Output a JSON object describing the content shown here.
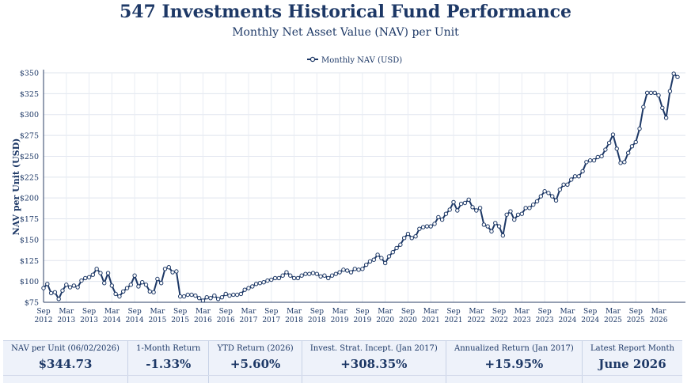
{
  "header": {
    "title": "547 Investments Historical Fund Performance",
    "subtitle": "Monthly Net Asset Value (NAV) per Unit"
  },
  "chart_data": {
    "type": "line",
    "ylabel": "NAV per Unit (USD)",
    "xlabel": "",
    "ylim": [
      75,
      350
    ],
    "yticks": [
      75,
      100,
      125,
      150,
      175,
      200,
      225,
      250,
      275,
      300,
      325,
      350
    ],
    "ytick_labels": [
      "$75",
      "$100",
      "$125",
      "$150",
      "$175",
      "$200",
      "$225",
      "$250",
      "$275",
      "$300",
      "$325",
      "$350"
    ],
    "grid": true,
    "legend_position": "top-center",
    "line_color": "#1d3866",
    "xticks": [
      {
        "m": "Sep",
        "y": "2012"
      },
      {
        "m": "Mar",
        "y": "2013"
      },
      {
        "m": "Sep",
        "y": "2013"
      },
      {
        "m": "Mar",
        "y": "2014"
      },
      {
        "m": "Sep",
        "y": "2014"
      },
      {
        "m": "Mar",
        "y": "2015"
      },
      {
        "m": "Sep",
        "y": "2015"
      },
      {
        "m": "Mar",
        "y": "2016"
      },
      {
        "m": "Sep",
        "y": "2016"
      },
      {
        "m": "Mar",
        "y": "2017"
      },
      {
        "m": "Sep",
        "y": "2017"
      },
      {
        "m": "Mar",
        "y": "2018"
      },
      {
        "m": "Sep",
        "y": "2018"
      },
      {
        "m": "Mar",
        "y": "2019"
      },
      {
        "m": "Sep",
        "y": "2019"
      },
      {
        "m": "Mar",
        "y": "2020"
      },
      {
        "m": "Sep",
        "y": "2020"
      },
      {
        "m": "Mar",
        "y": "2021"
      },
      {
        "m": "Sep",
        "y": "2021"
      },
      {
        "m": "Mar",
        "y": "2022"
      },
      {
        "m": "Sep",
        "y": "2022"
      },
      {
        "m": "Mar",
        "y": "2023"
      },
      {
        "m": "Sep",
        "y": "2023"
      },
      {
        "m": "Mar",
        "y": "2024"
      },
      {
        "m": "Sep",
        "y": "2024"
      },
      {
        "m": "Mar",
        "y": "2025"
      },
      {
        "m": "Sep",
        "y": "2025"
      },
      {
        "m": "Mar",
        "y": "2026"
      }
    ],
    "series": [
      {
        "name": "Monthly NAV (USD)",
        "start": "Sep 2012",
        "values": [
          92,
          97,
          86,
          87,
          79,
          89,
          96,
          93,
          95,
          93,
          101,
          104,
          105,
          108,
          115,
          110,
          98,
          110,
          95,
          85,
          82,
          88,
          92,
          96,
          107,
          94,
          99,
          96,
          88,
          87,
          103,
          98,
          115,
          117,
          111,
          112,
          82,
          82,
          84,
          84,
          83,
          80,
          77,
          81,
          80,
          83,
          79,
          81,
          85,
          83,
          84,
          84,
          85,
          90,
          92,
          94,
          97,
          98,
          99,
          101,
          102,
          104,
          104,
          107,
          111,
          107,
          104,
          104,
          107,
          109,
          109,
          110,
          109,
          106,
          107,
          104,
          107,
          109,
          111,
          114,
          113,
          111,
          115,
          114,
          115,
          120,
          124,
          126,
          132,
          128,
          122,
          130,
          135,
          140,
          144,
          152,
          157,
          152,
          154,
          163,
          165,
          166,
          166,
          169,
          177,
          174,
          181,
          186,
          195,
          185,
          193,
          194,
          198,
          189,
          185,
          188,
          168,
          166,
          160,
          170,
          166,
          155,
          180,
          184,
          174,
          180,
          181,
          188,
          188,
          192,
          196,
          202,
          208,
          206,
          202,
          197,
          210,
          216,
          216,
          222,
          226,
          226,
          232,
          243,
          245,
          245,
          249,
          250,
          258,
          266,
          276,
          259,
          242,
          243,
          254,
          262,
          267,
          283,
          309,
          326,
          326,
          326,
          323,
          308,
          296,
          328,
          349,
          345
        ]
      }
    ]
  },
  "stats": [
    {
      "label": "NAV per Unit (06/02/2026)",
      "value": "$344.73"
    },
    {
      "label": "1-Month Return",
      "value": "-1.33%"
    },
    {
      "label": "YTD Return (2026)",
      "value": "+5.60%"
    },
    {
      "label": "Invest. Strat. Incept. (Jan 2017)",
      "value": "+308.35%"
    },
    {
      "label": "Annualized Return (Jan 2017)",
      "value": "+15.95%"
    },
    {
      "label": "Latest Report Month",
      "value": "June 2026"
    }
  ]
}
